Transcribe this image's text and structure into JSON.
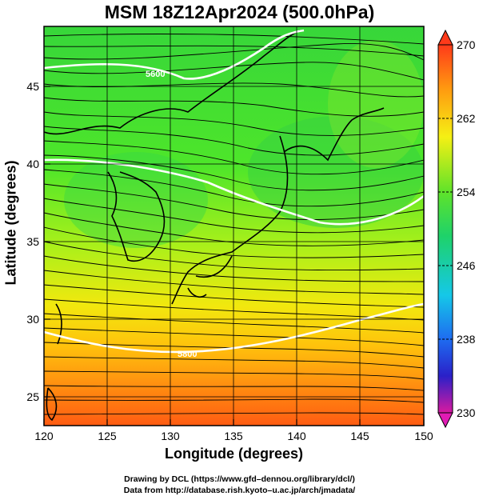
{
  "title": "MSM 18Z12Apr2024 (500.0hPa)",
  "x_axis": {
    "label": "Longitude (degrees)",
    "ticks": [
      "120",
      "125",
      "130",
      "135",
      "140",
      "145",
      "150"
    ],
    "range": [
      120,
      150
    ]
  },
  "y_axis": {
    "label": "Latitude  (degrees)",
    "ticks": [
      "25",
      "30",
      "35",
      "40",
      "45"
    ],
    "range": [
      22.4,
      47.6
    ]
  },
  "colorbar": {
    "ticks": [
      "270",
      "262",
      "254",
      "246",
      "238",
      "230"
    ],
    "range": [
      230,
      270
    ]
  },
  "contours": [
    {
      "label": "5600"
    },
    {
      "label": "5800"
    }
  ],
  "credits": {
    "line1": "Drawing by DCL (https://www.gfd–dennou.org/library/dcl/)",
    "line2": "Data from http://database.rish.kyoto–u.ac.jp/arch/jmadata/"
  }
}
